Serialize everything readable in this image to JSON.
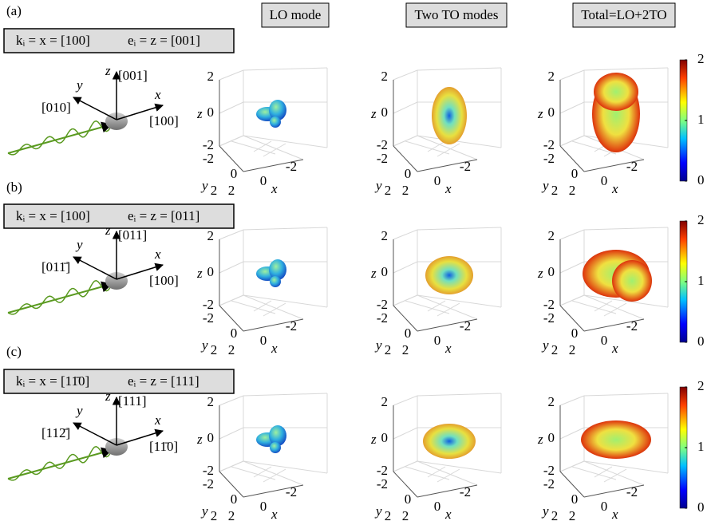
{
  "column_titles": [
    "LO mode",
    "Two TO modes",
    "Total=LO+2TO"
  ],
  "axis_labels": {
    "x": "x",
    "y": "y",
    "z": "z"
  },
  "axis_ticks": [
    -2,
    0,
    2
  ],
  "colorbar_ticks": [
    0,
    1,
    2
  ],
  "rows": [
    {
      "label": "(a)",
      "k_vector": "kᵢ = x = [100]",
      "e_vector": "eᵢ = z = [001]",
      "z_direction": "[001]",
      "y_direction": "[010]",
      "x_direction": "[100]"
    },
    {
      "label": "(b)",
      "k_vector": "kᵢ = x = [100]",
      "e_vector": "eᵢ = z = [011]",
      "z_direction": "[011]",
      "y_direction": "[011̄]",
      "x_direction": "[100]"
    },
    {
      "label": "(c)",
      "k_vector": "kᵢ = x = [11̄0]",
      "e_vector": "eᵢ = z = [111]",
      "z_direction": "[111]",
      "y_direction": "[112̄]",
      "x_direction": "[11̄0]"
    }
  ]
}
